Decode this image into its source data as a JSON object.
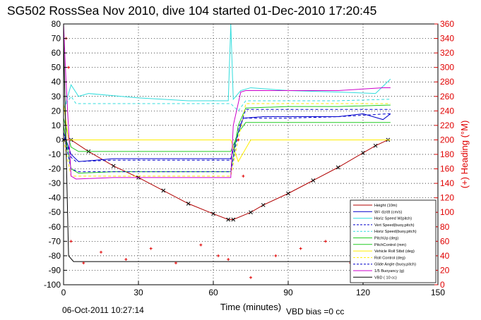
{
  "title": "SG502 RossSea Nov 2010, dive 104 started 01-Dec-2010 17:20:45",
  "footer": {
    "date": "06-Oct-2011 10:27:14",
    "vbd_bias": "VBD bias =0 cc"
  },
  "colors": {
    "height": "#b00000",
    "w": "#0000cc",
    "horiz_speed": "#33dddd",
    "pitch": "#22cc22",
    "roll": "#ffee00",
    "buoyancy": "#cc00cc",
    "vbd": "#000000",
    "heading": "#e00000"
  },
  "chart_data": {
    "type": "line",
    "title": "SG502 RossSea Nov 2010, dive 104 started 01-Dec-2010 17:20:45",
    "xlabel": "Time (minutes)",
    "ylabel": "",
    "ylabel_right": "(+) Heading (°M)",
    "xlim": [
      0,
      150
    ],
    "ylim": [
      -100,
      80
    ],
    "ylim_right": [
      0,
      360
    ],
    "xticks": [
      0,
      30,
      60,
      90,
      120,
      150
    ],
    "yticks": [
      -100,
      -90,
      -80,
      -70,
      -60,
      -50,
      -40,
      -30,
      -20,
      -10,
      0,
      10,
      20,
      30,
      40,
      50,
      60,
      70,
      80
    ],
    "yticks_right": [
      0,
      20,
      40,
      60,
      80,
      100,
      120,
      140,
      160,
      180,
      200,
      220,
      240,
      260,
      280,
      300,
      320,
      340,
      360
    ],
    "grid": true,
    "legend_position": "bottom-right",
    "legend": [
      "Height (10m)",
      "W= dz/dt (cm/s)",
      "Horiz Speed W(pitch)",
      "Vert Speed(buoy,pitch)",
      "Horiz Speed(buoy,pitch)",
      "PitchUp (deg)",
      "PitchControl (mm)",
      "Vehicle Roll Stbd (deg)",
      "Roll Control (deg)",
      "Glide Angle (buoy,pitch)",
      "1/5 Buoyancy (g)",
      "VBD ( 10 cc)"
    ],
    "series": [
      {
        "name": "Height (10m)",
        "x": [
          0,
          3,
          10,
          20,
          30,
          40,
          50,
          60,
          66,
          68,
          75,
          80,
          90,
          100,
          110,
          120,
          125,
          130
        ],
        "values": [
          0,
          0,
          -8,
          -18,
          -26,
          -35,
          -44,
          -51,
          -55,
          -55,
          -50,
          -45,
          -37,
          -28,
          -19,
          -9,
          -4,
          0
        ]
      },
      {
        "name": "W= dz/dt (cm/s)",
        "x": [
          0,
          3,
          6,
          20,
          40,
          60,
          67,
          70,
          72,
          80,
          100,
          110,
          120,
          128,
          131
        ],
        "values": [
          5,
          -10,
          -15,
          -13,
          -13,
          -13,
          -13,
          5,
          15,
          16,
          16,
          16,
          18,
          14,
          18
        ]
      },
      {
        "name": "Horiz Speed W(pitch)",
        "x": [
          0,
          3,
          6,
          10,
          30,
          50,
          66,
          67,
          68,
          71,
          75,
          90,
          110,
          125,
          131
        ],
        "values": [
          20,
          38,
          30,
          32,
          29,
          27,
          27,
          80,
          28,
          34,
          36,
          34,
          33,
          32,
          42
        ]
      },
      {
        "name": "Vert Speed(buoy,pitch)",
        "x": [
          0,
          3,
          5,
          20,
          40,
          60,
          67,
          70,
          72,
          90,
          110,
          120,
          130,
          131
        ],
        "values": [
          5,
          -12,
          -15,
          -14,
          -14,
          -14,
          -14,
          8,
          15,
          15,
          16,
          17,
          18,
          18
        ]
      },
      {
        "name": "Horiz Speed(buoy,pitch)",
        "x": [
          0,
          3,
          5,
          20,
          40,
          60,
          67,
          70,
          73,
          90,
          110,
          130,
          131
        ],
        "values": [
          22,
          30,
          25,
          25,
          25,
          25,
          25,
          20,
          27,
          27,
          27,
          28,
          28
        ]
      },
      {
        "name": "PitchUp (deg)",
        "x": [
          0,
          3,
          6,
          20,
          40,
          60,
          67,
          70,
          73,
          90,
          110,
          130,
          131
        ],
        "values": [
          10,
          -20,
          -23,
          -22,
          -22,
          -22,
          -22,
          10,
          22,
          23,
          23,
          24,
          24
        ]
      },
      {
        "name": "PitchControl (mm)",
        "x": [
          0,
          3,
          6,
          20,
          40,
          60,
          67,
          70,
          73,
          90,
          110,
          130,
          131
        ],
        "values": [
          15,
          -5,
          -8,
          -8,
          -8,
          -8,
          -8,
          5,
          12,
          12,
          12,
          12,
          12
        ]
      },
      {
        "name": "Vehicle Roll Stbd (deg)",
        "x": [
          0,
          2,
          5,
          20,
          40,
          60,
          67,
          70,
          75,
          90,
          110,
          130,
          131
        ],
        "values": [
          25,
          0,
          0,
          0,
          0,
          0,
          0,
          -15,
          0,
          0,
          0,
          0,
          0
        ]
      },
      {
        "name": "Roll Control (deg)",
        "x": [
          0,
          3,
          6,
          20,
          40,
          60,
          67,
          70,
          73,
          90,
          110,
          130,
          131
        ],
        "values": [
          0,
          -25,
          -25,
          -25,
          -25,
          -25,
          -25,
          0,
          25,
          25,
          25,
          25,
          25
        ]
      },
      {
        "name": "Glide Angle (buoy,pitch)",
        "x": [
          0,
          3,
          6,
          20,
          40,
          60,
          67,
          70,
          73,
          90,
          110,
          130,
          131
        ],
        "values": [
          5,
          -20,
          -22,
          -22,
          -22,
          -22,
          -22,
          5,
          21,
          21,
          21,
          21,
          21
        ]
      },
      {
        "name": "1/5 Buoyancy (g)",
        "x": [
          0,
          1,
          3,
          5,
          20,
          40,
          60,
          67,
          68,
          71,
          73,
          90,
          110,
          128,
          131
        ],
        "values": [
          80,
          40,
          -25,
          -27,
          -26,
          -26,
          -26,
          -26,
          10,
          33,
          34,
          34,
          34,
          36,
          36
        ]
      },
      {
        "name": "VBD ( 10 cc)",
        "x": [
          0,
          2,
          4,
          20,
          40,
          60,
          67,
          70,
          73,
          90,
          110,
          130,
          131
        ],
        "values": [
          70,
          -80,
          -84,
          -84,
          -84,
          -84,
          -84,
          -84,
          -84,
          -84,
          -84,
          -84,
          -84
        ]
      },
      {
        "name": "Heading",
        "axis": "right",
        "x": [
          1,
          2,
          3,
          8,
          15,
          25,
          35,
          45,
          55,
          62,
          66,
          70,
          72,
          75,
          85,
          95,
          105,
          115,
          125,
          130
        ],
        "values": [
          340,
          300,
          60,
          30,
          45,
          35,
          50,
          30,
          55,
          40,
          35,
          200,
          150,
          10,
          40,
          50,
          60,
          30,
          20,
          25
        ]
      }
    ]
  }
}
